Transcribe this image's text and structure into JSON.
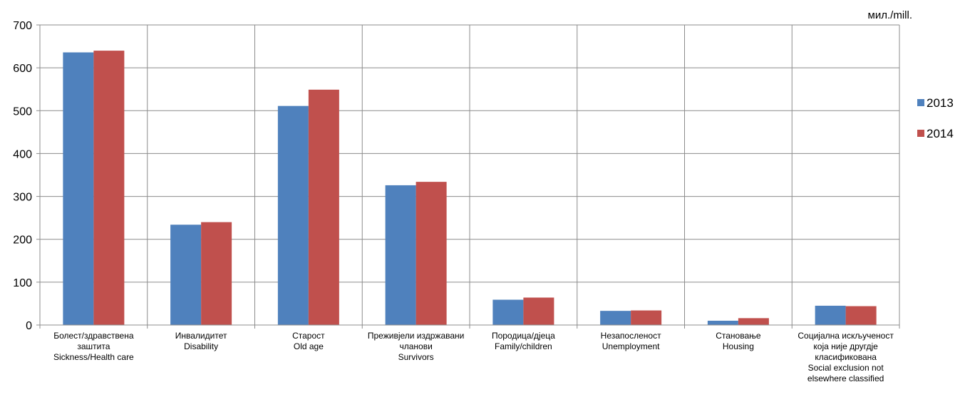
{
  "chart_data": {
    "type": "bar",
    "title": "",
    "unit_label": "мил./mill.",
    "ylim": [
      0,
      700
    ],
    "yticks": [
      0,
      100,
      200,
      300,
      400,
      500,
      600,
      700
    ],
    "grid": true,
    "legend_position": "right",
    "categories": [
      [
        "Болест/здравствена",
        "заштита",
        "Sickness/Health care"
      ],
      [
        "Инвалидитет",
        "Disability"
      ],
      [
        "Старост",
        "Old age"
      ],
      [
        "Преживјели издржавани",
        "чланови",
        "Survivors"
      ],
      [
        "Породица/дјеца",
        "Family/children"
      ],
      [
        "Незапосленост",
        "Unemployment"
      ],
      [
        "Становање",
        "Housing"
      ],
      [
        "Социјална искљученост",
        "која није другдје",
        "класификована",
        "Social exclusion not",
        "elsewhere classified"
      ]
    ],
    "series": [
      {
        "name": "2013",
        "color": "#4f81bd",
        "values": [
          636,
          234,
          511,
          326,
          59,
          33,
          10,
          45
        ]
      },
      {
        "name": "2014",
        "color": "#c0504d",
        "values": [
          640,
          240,
          549,
          334,
          64,
          34,
          16,
          44
        ]
      }
    ]
  }
}
